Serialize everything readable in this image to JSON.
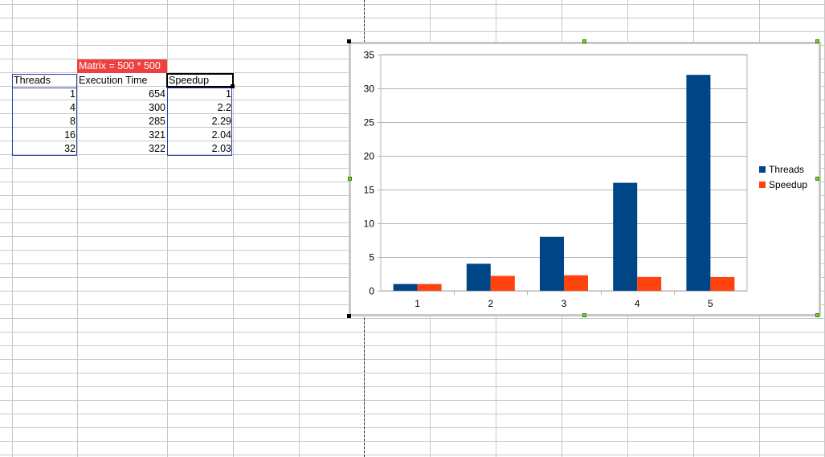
{
  "sheet": {
    "title_cell": "Matrix = 500 * 500",
    "headers": [
      "Threads",
      "Execution Time",
      "Speedup"
    ],
    "rows": [
      [
        "1",
        "654",
        "1"
      ],
      [
        "4",
        "300",
        "2.2"
      ],
      [
        "8",
        "285",
        "2.29"
      ],
      [
        "16",
        "321",
        "2.04"
      ],
      [
        "32",
        "322",
        "2.03"
      ]
    ],
    "colors": {
      "title_fill": "#ee4040",
      "selection_border": "#2a3fb0"
    }
  },
  "chart_data": {
    "type": "bar",
    "categories": [
      "1",
      "2",
      "3",
      "4",
      "5"
    ],
    "series": [
      {
        "name": "Threads",
        "values": [
          1,
          4,
          8,
          16,
          32
        ],
        "color": "#004586"
      },
      {
        "name": "Speedup",
        "values": [
          1,
          2.2,
          2.29,
          2.04,
          2.03
        ],
        "color": "#ff420e"
      }
    ],
    "ylim": [
      0,
      35
    ],
    "yticks": [
      "0",
      "5",
      "10",
      "15",
      "20",
      "25",
      "30",
      "35"
    ],
    "grid": true,
    "legend": "right"
  }
}
